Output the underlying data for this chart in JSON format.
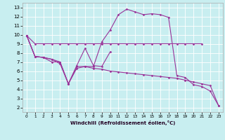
{
  "xlabel": "Windchill (Refroidissement éolien,°C)",
  "background_color": "#c8eef0",
  "line_color": "#993399",
  "xlim": [
    -0.5,
    23.5
  ],
  "ylim": [
    1.5,
    13.5
  ],
  "xticks": [
    0,
    1,
    2,
    3,
    4,
    5,
    6,
    7,
    8,
    9,
    10,
    11,
    12,
    13,
    14,
    15,
    16,
    17,
    18,
    19,
    20,
    21,
    22,
    23
  ],
  "yticks": [
    2,
    3,
    4,
    5,
    6,
    7,
    8,
    9,
    10,
    11,
    12,
    13
  ],
  "series": [
    {
      "x": [
        0,
        1,
        2,
        3,
        4,
        5,
        6,
        7,
        8,
        9,
        10,
        11,
        12,
        13,
        14,
        15,
        16,
        17,
        18,
        19,
        20,
        21
      ],
      "y": [
        9.9,
        9.0,
        9.0,
        9.0,
        9.0,
        9.0,
        9.0,
        9.0,
        9.0,
        9.0,
        9.0,
        9.0,
        9.0,
        9.0,
        9.0,
        9.0,
        9.0,
        9.0,
        9.0,
        9.0,
        9.0,
        9.0
      ]
    },
    {
      "x": [
        0,
        1,
        2,
        3,
        4,
        5,
        6,
        7,
        8,
        9,
        10
      ],
      "y": [
        9.9,
        7.6,
        7.5,
        7.0,
        7.0,
        4.6,
        6.6,
        8.5,
        6.6,
        6.5,
        8.1
      ]
    },
    {
      "x": [
        0,
        1,
        2,
        3,
        4,
        5,
        6,
        7,
        8,
        9,
        10,
        11,
        12,
        13,
        14,
        15,
        16,
        17,
        18,
        19,
        20,
        21,
        22,
        23
      ],
      "y": [
        9.9,
        7.6,
        7.5,
        7.3,
        6.8,
        4.6,
        6.3,
        6.5,
        6.3,
        6.2,
        6.0,
        5.9,
        5.8,
        5.7,
        5.6,
        5.5,
        5.4,
        5.3,
        5.2,
        5.0,
        4.8,
        4.6,
        4.4,
        2.2
      ]
    },
    {
      "x": [
        0,
        1,
        2,
        3,
        4,
        5,
        6,
        7,
        8,
        9,
        10,
        11,
        12,
        13,
        14,
        15,
        16,
        17,
        18,
        19,
        20,
        21,
        22,
        23
      ],
      "y": [
        9.9,
        7.6,
        7.5,
        7.3,
        7.0,
        4.6,
        6.5,
        6.5,
        6.5,
        9.2,
        10.5,
        12.2,
        12.8,
        12.5,
        12.2,
        12.3,
        12.2,
        11.9,
        5.5,
        5.3,
        4.5,
        4.3,
        3.8,
        2.2
      ]
    }
  ]
}
